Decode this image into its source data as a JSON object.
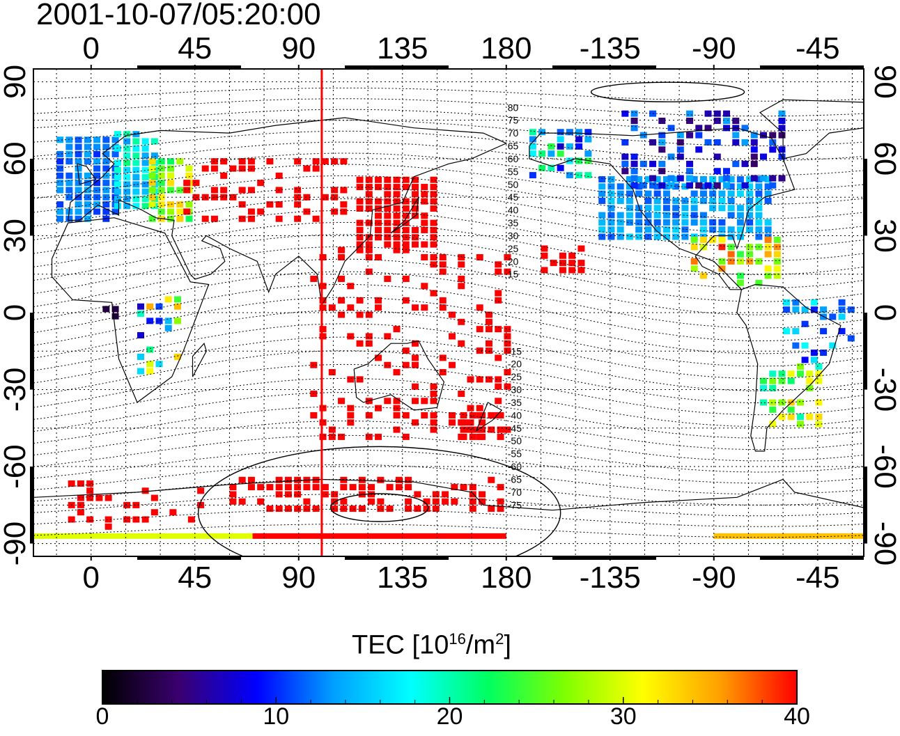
{
  "timestamp": "2001-10-07/05:20:00",
  "colorbar": {
    "label_prefix": "TEC  [10",
    "label_exp1": "16",
    "label_mid": "/m",
    "label_exp2": "2",
    "label_suffix": "]",
    "min": 0,
    "max": 40,
    "ticks": [
      {
        "value": 0,
        "label": "0"
      },
      {
        "value": 10,
        "label": "10"
      },
      {
        "value": 20,
        "label": "20"
      },
      {
        "value": 30,
        "label": "30"
      },
      {
        "value": 40,
        "label": "40"
      }
    ],
    "colors": [
      "#000000",
      "#3a0070",
      "#0000ff",
      "#00a0ff",
      "#00ffff",
      "#00ff60",
      "#80ff00",
      "#ffff00",
      "#ffa000",
      "#ff0000"
    ]
  },
  "map": {
    "lon_range": [
      -25,
      335
    ],
    "lat_range": [
      -95,
      95
    ],
    "lon_tick_values": [
      0,
      45,
      90,
      135,
      180,
      225,
      270,
      315
    ],
    "lon_tick_labels": [
      "0",
      "45",
      "90",
      "135",
      "180",
      "-135",
      "-90",
      "-45"
    ],
    "lat_ticks": [
      {
        "value": 90,
        "label": "90"
      },
      {
        "value": 60,
        "label": "60"
      },
      {
        "value": 30,
        "label": "30"
      },
      {
        "value": 0,
        "label": "0"
      },
      {
        "value": -30,
        "label": "-30"
      },
      {
        "value": -60,
        "label": "-60"
      },
      {
        "value": -90,
        "label": "-90"
      }
    ],
    "contour_labels": [
      "80",
      "75",
      "70",
      "65",
      "60",
      "55",
      "50",
      "45",
      "40",
      "35",
      "30",
      "25",
      "20",
      "15",
      "-15",
      "-20",
      "-25",
      "-30",
      "-35",
      "-40",
      "-45",
      "-50",
      "-55",
      "-60",
      "-65",
      "-70",
      "-75"
    ],
    "vertical_line_lon": 100,
    "vertical_line_color": "#ff0000"
  }
}
